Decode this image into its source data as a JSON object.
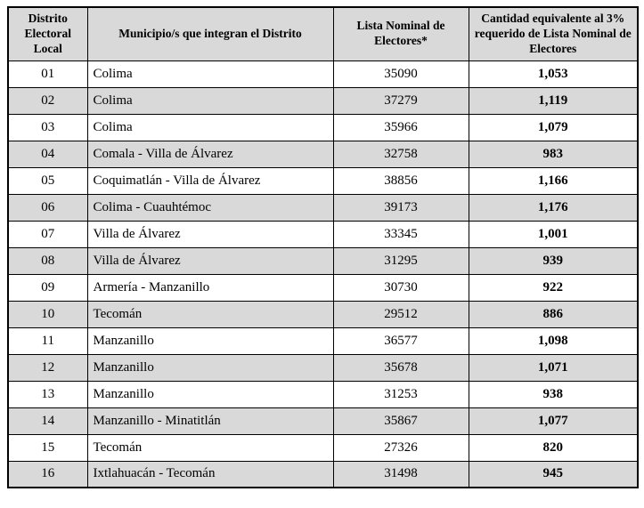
{
  "colors": {
    "header_bg": "#d9d9d9",
    "row_alt_bg": "#d9d9d9",
    "border": "#000000"
  },
  "table": {
    "headers": [
      "Distrito Electoral Local",
      "Municipio/s que integran el Distrito",
      "Lista Nominal de Electores*",
      "Cantidad equivalente al 3% requerido de Lista Nominal de Electores"
    ],
    "rows": [
      {
        "district": "01",
        "municipios": "Colima",
        "lista": "35090",
        "cantidad": "1,053"
      },
      {
        "district": "02",
        "municipios": "Colima",
        "lista": "37279",
        "cantidad": "1,119"
      },
      {
        "district": "03",
        "municipios": "Colima",
        "lista": "35966",
        "cantidad": "1,079"
      },
      {
        "district": "04",
        "municipios": "Comala - Villa de Álvarez",
        "lista": "32758",
        "cantidad": "983"
      },
      {
        "district": "05",
        "municipios": "Coquimatlán - Villa de Álvarez",
        "lista": "38856",
        "cantidad": "1,166"
      },
      {
        "district": "06",
        "municipios": "Colima - Cuauhtémoc",
        "lista": "39173",
        "cantidad": "1,176"
      },
      {
        "district": "07",
        "municipios": "Villa de Álvarez",
        "lista": "33345",
        "cantidad": "1,001"
      },
      {
        "district": "08",
        "municipios": "Villa de Álvarez",
        "lista": "31295",
        "cantidad": "939"
      },
      {
        "district": "09",
        "municipios": "Armería - Manzanillo",
        "lista": "30730",
        "cantidad": "922"
      },
      {
        "district": "10",
        "municipios": "Tecomán",
        "lista": "29512",
        "cantidad": "886"
      },
      {
        "district": "11",
        "municipios": "Manzanillo",
        "lista": "36577",
        "cantidad": "1,098"
      },
      {
        "district": "12",
        "municipios": "Manzanillo",
        "lista": "35678",
        "cantidad": "1,071"
      },
      {
        "district": "13",
        "municipios": "Manzanillo",
        "lista": "31253",
        "cantidad": "938"
      },
      {
        "district": "14",
        "municipios": "Manzanillo - Minatitlán",
        "lista": "35867",
        "cantidad": "1,077"
      },
      {
        "district": "15",
        "municipios": "Tecomán",
        "lista": "27326",
        "cantidad": "820"
      },
      {
        "district": "16",
        "municipios": "Ixtlahuacán - Tecomán",
        "lista": "31498",
        "cantidad": "945"
      }
    ]
  }
}
